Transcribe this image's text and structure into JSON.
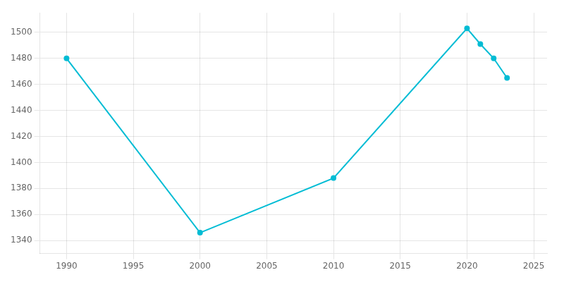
{
  "chart_data": {
    "type": "line",
    "x": [
      1990,
      2000,
      2010,
      2020,
      2021,
      2022,
      2023
    ],
    "values": [
      1480,
      1346,
      1388,
      1503,
      1491,
      1480,
      1465
    ],
    "color": "#00BCD4",
    "marker": "circle",
    "xlim": [
      1988,
      2026
    ],
    "ylim": [
      1330,
      1515
    ],
    "xticks": [
      1990,
      1995,
      2000,
      2005,
      2010,
      2015,
      2020,
      2025
    ],
    "yticks": [
      1340,
      1360,
      1380,
      1400,
      1420,
      1440,
      1460,
      1480,
      1500
    ],
    "grid": true
  }
}
